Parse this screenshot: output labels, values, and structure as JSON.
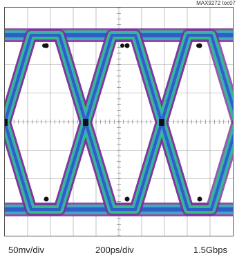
{
  "figure_id": "MAX9272 toc07",
  "chart_data": {
    "type": "eye-diagram",
    "vertical_scale": "50mv/div",
    "time_scale": "200ps/div",
    "data_rate": "1.5Gbps",
    "divisions": {
      "x": 10,
      "y": 8
    },
    "grid": true
  },
  "colors": {
    "trace_core": "#2f5fc4",
    "trace_mid": "#3aa7c8",
    "trace_edge": "#35c07a",
    "trace_halo": "#7a2ea0",
    "grid": "#9a9a9a",
    "background": "#ffffff"
  }
}
